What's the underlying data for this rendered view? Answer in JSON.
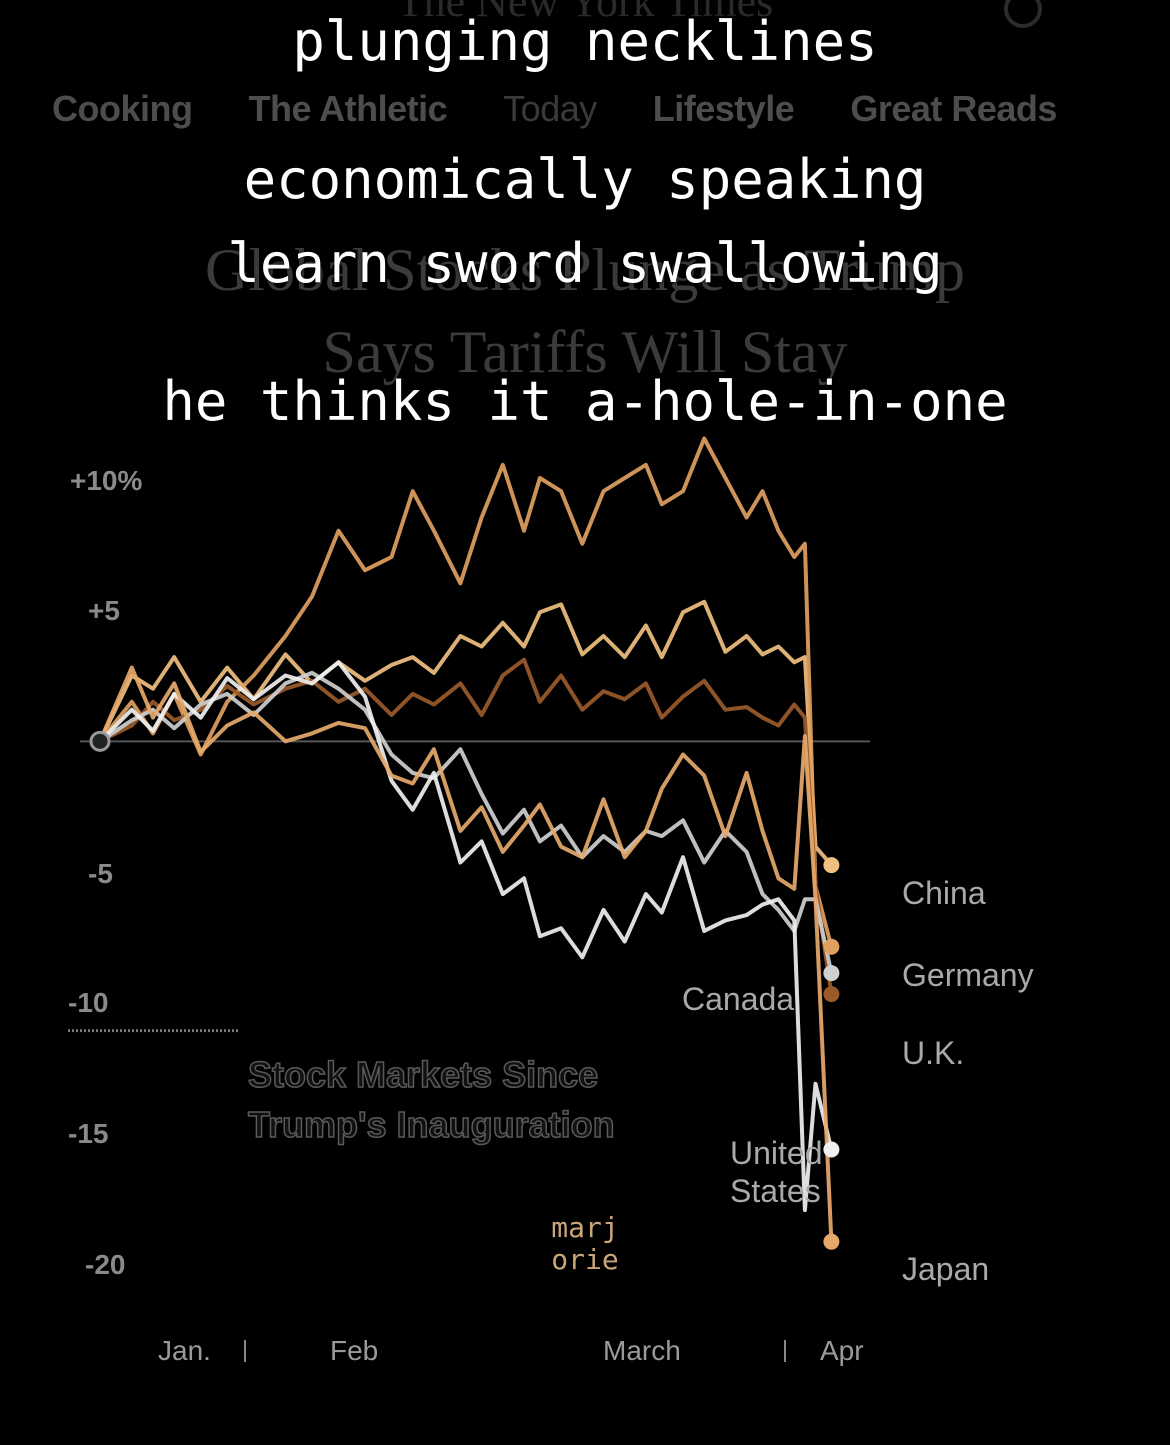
{
  "page": {
    "masthead": "The New York Times",
    "nav": [
      "Cooking",
      "The Athletic",
      "Today",
      "Lifestyle",
      "Great Reads"
    ],
    "headline": [
      "Global Stocks Plunge as Trump",
      "Says Tariffs Will Stay"
    ],
    "overlay_lines": [
      "plunging necklines",
      "economically speaking",
      "learn sword swallowing",
      "he thinks it a-hole-in-one"
    ],
    "signature": [
      "marj",
      "orie"
    ]
  },
  "chart_data": {
    "type": "line",
    "title": "Stock Markets Since Trump's Inauguration",
    "title_lines": [
      "Stock Markets Since",
      "Trump's Inauguration"
    ],
    "ytick_labels": [
      "+10%",
      "+5",
      "",
      "-5",
      "-10",
      "-15",
      "-20"
    ],
    "yticks": [
      10,
      5,
      0,
      -5,
      -10,
      -15,
      -20
    ],
    "xtick_labels": [
      "Jan.",
      "Feb",
      "March",
      "Apr"
    ],
    "xticks": [
      0.2,
      1,
      1.95,
      2.6
    ],
    "ylim": [
      -20,
      10
    ],
    "xlim": [
      0,
      3
    ],
    "grid": false,
    "series": [
      {
        "name": "China",
        "color": "#f0c080",
        "x": [
          0,
          0.12,
          0.2,
          0.28,
          0.38,
          0.48,
          0.58,
          0.7,
          0.8,
          0.9,
          1.0,
          1.1,
          1.18,
          1.26,
          1.36,
          1.44,
          1.52,
          1.6,
          1.66,
          1.74,
          1.82,
          1.9,
          1.98,
          2.06,
          2.12,
          2.2,
          2.28,
          2.36,
          2.44,
          2.5,
          2.56,
          2.62,
          2.66,
          2.7,
          2.76
        ],
        "y": [
          0,
          2.5,
          2,
          3.2,
          1.5,
          2.8,
          1.6,
          3.3,
          2.2,
          3.0,
          2.3,
          2.9,
          3.2,
          2.6,
          4.0,
          3.6,
          4.5,
          3.6,
          4.9,
          5.2,
          3.3,
          4.0,
          3.2,
          4.4,
          3.2,
          4.9,
          5.3,
          3.4,
          4.0,
          3.3,
          3.6,
          3.0,
          3.2,
          -4,
          -4.7
        ]
      },
      {
        "name": "Germany",
        "color": "#e0a060",
        "x": [
          0,
          0.12,
          0.2,
          0.28,
          0.38,
          0.48,
          0.58,
          0.7,
          0.8,
          0.9,
          1.0,
          1.1,
          1.18,
          1.26,
          1.36,
          1.44,
          1.52,
          1.6,
          1.66,
          1.74,
          1.82,
          1.9,
          1.98,
          2.06,
          2.12,
          2.2,
          2.28,
          2.36,
          2.44,
          2.5,
          2.56,
          2.62,
          2.66,
          2.7,
          2.76
        ],
        "y": [
          0,
          1.5,
          0.3,
          1.8,
          -0.5,
          1.5,
          2.5,
          4.0,
          5.5,
          8.0,
          6.5,
          7.0,
          9.5,
          8.0,
          6.0,
          8.5,
          10.5,
          8.0,
          10.0,
          9.5,
          7.5,
          9.5,
          10.0,
          10.5,
          9.0,
          9.5,
          11.5,
          10.0,
          8.5,
          9.5,
          8.0,
          7.0,
          7.5,
          -5.5,
          -7.8
        ]
      },
      {
        "name": "U.K.",
        "color": "#9a5a2a",
        "x": [
          0,
          0.12,
          0.2,
          0.28,
          0.38,
          0.48,
          0.58,
          0.7,
          0.8,
          0.9,
          1.0,
          1.1,
          1.18,
          1.26,
          1.36,
          1.44,
          1.52,
          1.6,
          1.66,
          1.74,
          1.82,
          1.9,
          1.98,
          2.06,
          2.12,
          2.2,
          2.28,
          2.36,
          2.44,
          2.5,
          2.56,
          2.62,
          2.66,
          2.7,
          2.76
        ],
        "y": [
          0,
          0.6,
          1.5,
          0.8,
          1.2,
          2.1,
          1.4,
          2.0,
          2.3,
          1.5,
          2.0,
          1.0,
          1.8,
          1.4,
          2.2,
          1.0,
          2.5,
          3.1,
          1.5,
          2.5,
          1.2,
          1.9,
          1.6,
          2.2,
          0.9,
          1.7,
          2.3,
          1.2,
          1.3,
          0.9,
          0.6,
          1.4,
          0.9,
          -5.5,
          -9.6
        ]
      },
      {
        "name": "Canada",
        "color": "#cfcfcf",
        "x": [
          0,
          0.12,
          0.2,
          0.28,
          0.38,
          0.48,
          0.58,
          0.7,
          0.8,
          0.9,
          1.0,
          1.1,
          1.18,
          1.26,
          1.36,
          1.44,
          1.52,
          1.6,
          1.66,
          1.74,
          1.82,
          1.9,
          1.98,
          2.06,
          2.12,
          2.2,
          2.28,
          2.36,
          2.44,
          2.5,
          2.56,
          2.62,
          2.66,
          2.7,
          2.76
        ],
        "y": [
          0,
          0.8,
          1.2,
          0.5,
          1.4,
          1.8,
          1.0,
          2.2,
          2.6,
          2.0,
          1.2,
          -0.5,
          -1.2,
          -1.4,
          -0.3,
          -2.0,
          -3.5,
          -2.6,
          -3.8,
          -3.2,
          -4.4,
          -3.6,
          -4.2,
          -3.4,
          -3.6,
          -3.0,
          -4.6,
          -3.4,
          -4.2,
          -5.8,
          -6.4,
          -7.2,
          -6.0,
          -6.0,
          -8.8
        ]
      },
      {
        "name": "United States",
        "color": "#f0f0f0",
        "x": [
          0,
          0.12,
          0.2,
          0.28,
          0.38,
          0.48,
          0.58,
          0.7,
          0.8,
          0.9,
          1.0,
          1.1,
          1.18,
          1.26,
          1.36,
          1.44,
          1.52,
          1.6,
          1.66,
          1.74,
          1.82,
          1.9,
          1.98,
          2.06,
          2.12,
          2.2,
          2.28,
          2.36,
          2.44,
          2.5,
          2.56,
          2.62,
          2.66,
          2.7,
          2.76
        ],
        "y": [
          0,
          1.2,
          0.4,
          1.8,
          0.9,
          2.4,
          1.6,
          2.5,
          2.2,
          3.0,
          1.7,
          -1.5,
          -2.6,
          -1.2,
          -4.6,
          -3.8,
          -5.8,
          -5.2,
          -7.4,
          -7.1,
          -8.2,
          -6.4,
          -7.6,
          -5.8,
          -6.5,
          -4.4,
          -7.2,
          -6.8,
          -6.6,
          -6.2,
          -6.0,
          -6.8,
          -17.8,
          -13.0,
          -15.5
        ]
      },
      {
        "name": "Japan",
        "color": "#e6a96b",
        "x": [
          0,
          0.12,
          0.2,
          0.28,
          0.38,
          0.48,
          0.58,
          0.7,
          0.8,
          0.9,
          1.0,
          1.1,
          1.18,
          1.26,
          1.36,
          1.44,
          1.52,
          1.6,
          1.66,
          1.74,
          1.82,
          1.9,
          1.98,
          2.06,
          2.12,
          2.2,
          2.28,
          2.36,
          2.44,
          2.5,
          2.56,
          2.62,
          2.66,
          2.7,
          2.76
        ],
        "y": [
          0,
          2.8,
          0.9,
          2.2,
          -0.4,
          0.6,
          1.1,
          0.0,
          0.3,
          0.7,
          0.5,
          -1.3,
          -1.6,
          -0.3,
          -3.4,
          -2.5,
          -4.2,
          -3.2,
          -2.4,
          -4.0,
          -4.4,
          -2.2,
          -4.4,
          -3.4,
          -1.8,
          -0.5,
          -1.3,
          -3.6,
          -1.2,
          -3.4,
          -5.2,
          -5.6,
          0.2,
          -6.0,
          -19.0
        ]
      }
    ],
    "end_labels": [
      "China",
      "Germany",
      "Canada",
      "U.K.",
      "United",
      "States",
      "Japan"
    ]
  }
}
